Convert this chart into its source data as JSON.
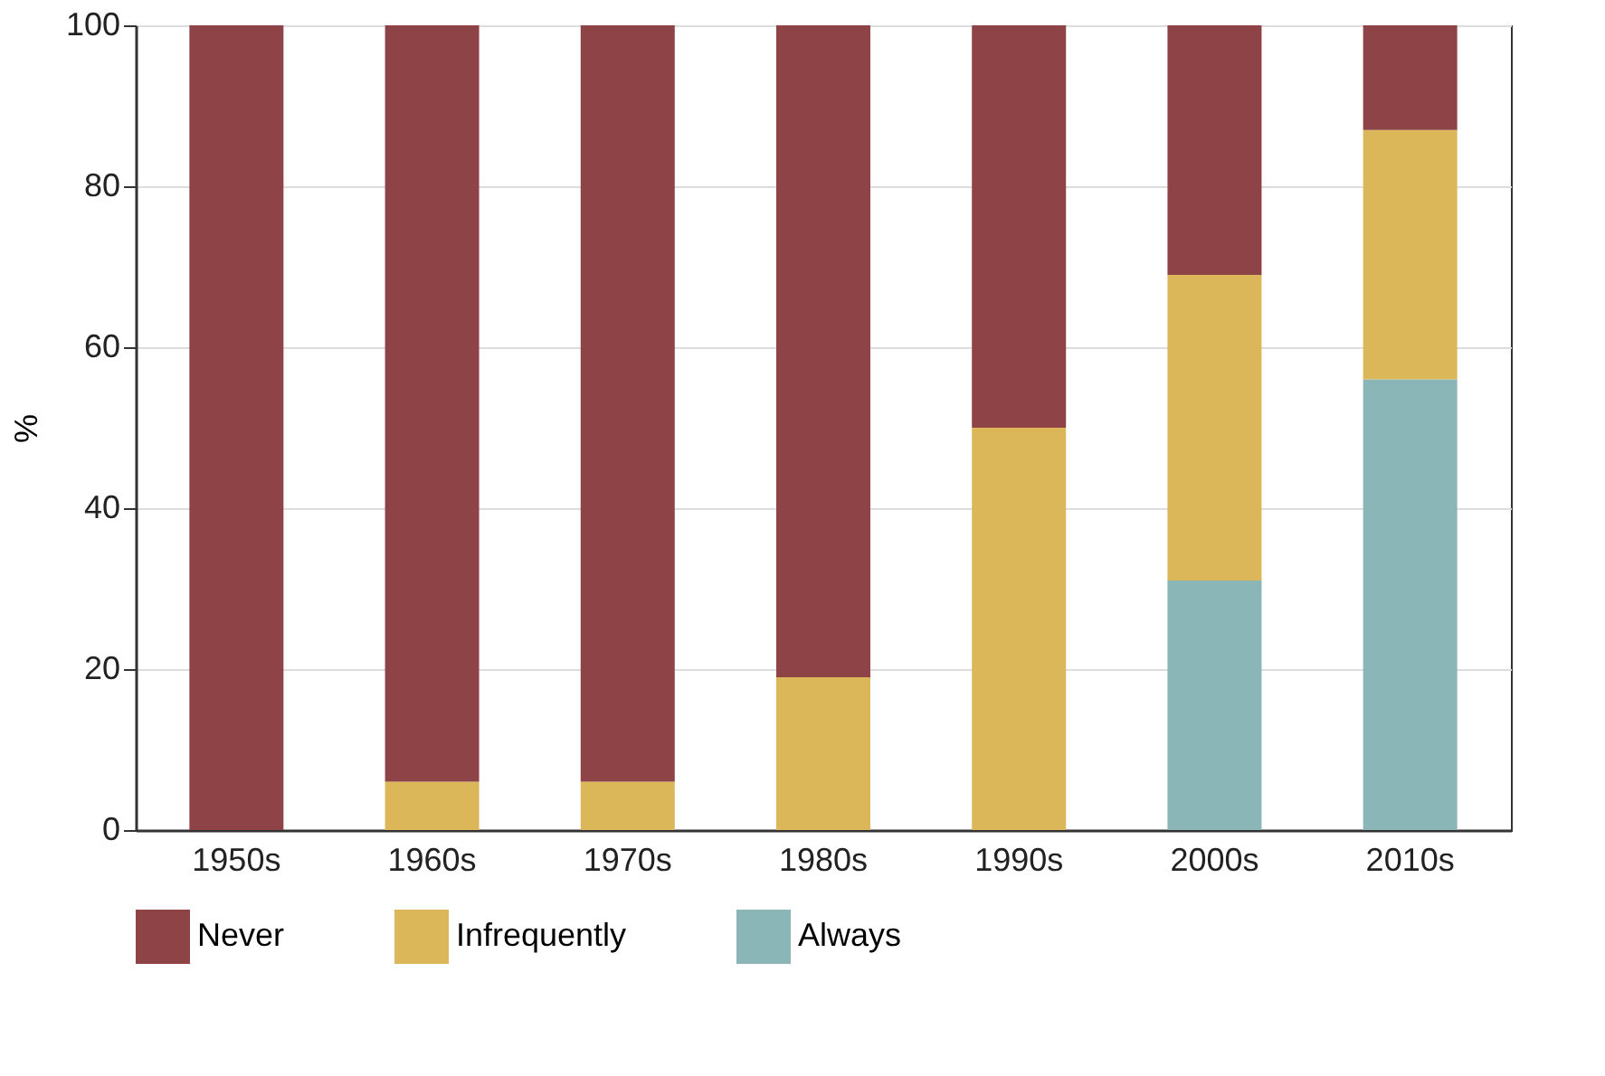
{
  "chart_data": {
    "type": "bar",
    "stacked": true,
    "ylabel": "%",
    "categories": [
      "1950s",
      "1960s",
      "1970s",
      "1980s",
      "1990s",
      "2000s",
      "2010s"
    ],
    "series": [
      {
        "name": "Always",
        "color": "#8ab6b8",
        "values": [
          0,
          0,
          0,
          0,
          0,
          31,
          56
        ]
      },
      {
        "name": "Infrequently",
        "color": "#dcb75a",
        "values": [
          0,
          6,
          6,
          19,
          50,
          38,
          31
        ]
      },
      {
        "name": "Never",
        "color": "#8e4446",
        "values": [
          100,
          94,
          94,
          81,
          50,
          31,
          13
        ]
      }
    ],
    "ylim": [
      0,
      100
    ],
    "yticks": [
      0,
      20,
      40,
      60,
      80,
      100
    ],
    "grid": "y",
    "legend": "bottom"
  }
}
